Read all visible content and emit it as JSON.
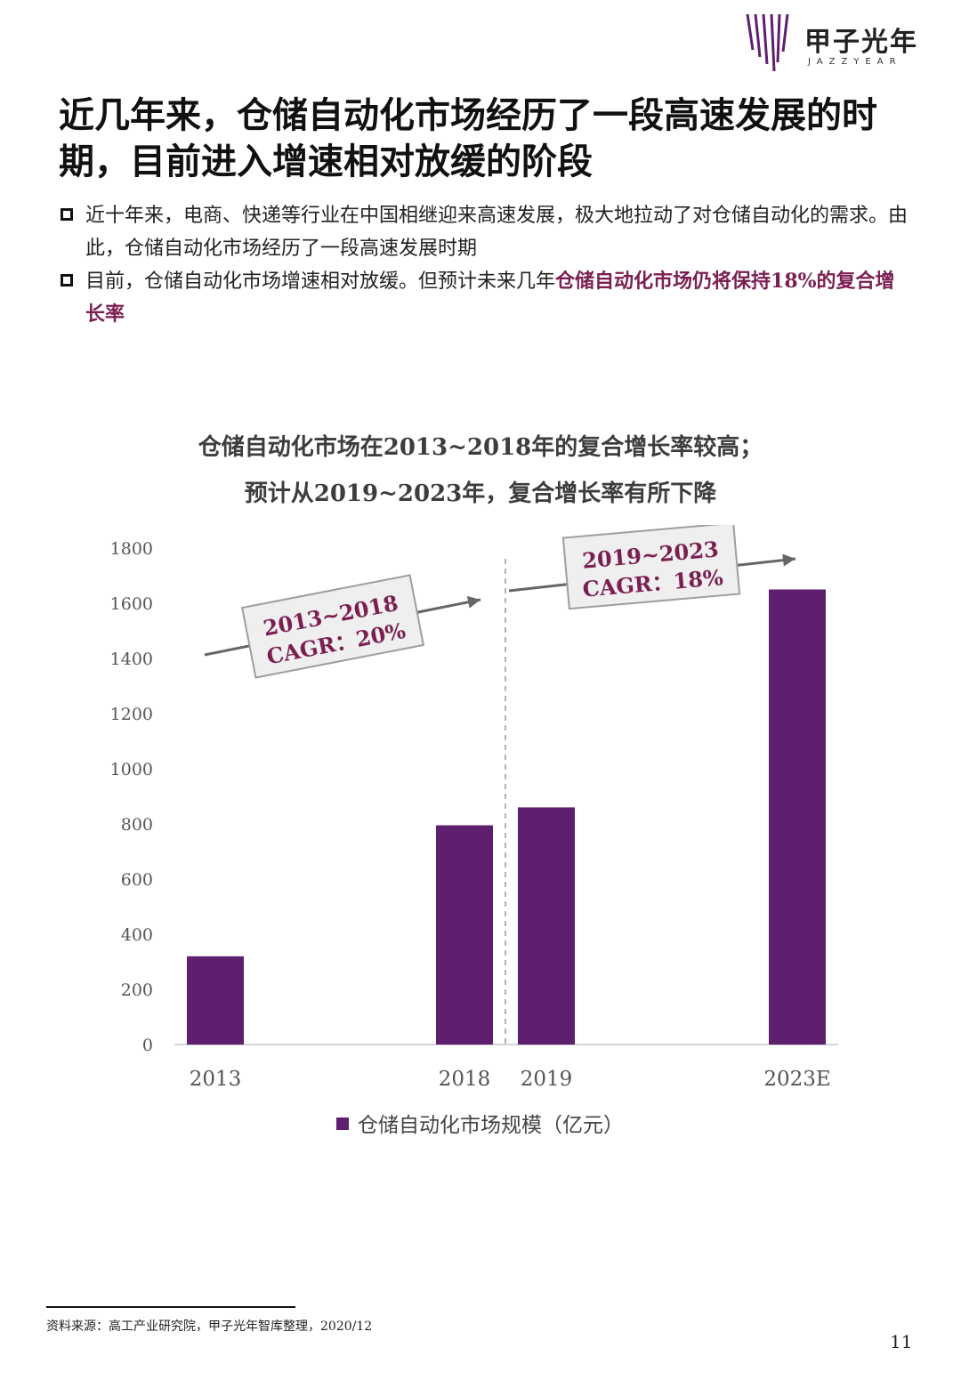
{
  "brand": {
    "name": "甲子光年",
    "name_en": "JAZZYEAR",
    "accent": "#5e1f6f",
    "highlight": "#7b1f52"
  },
  "page": {
    "title": "近几年来，仓储自动化市场经历了一段高速发展的时期，目前进入增速相对放缓的阶段",
    "bullets": [
      {
        "text": "近十年来，电商、快递等行业在中国相继迎来高速发展，极大地拉动了对仓储自动化的需求。由此，仓储自动化市场经历了一段高速发展时期",
        "highlight": ""
      },
      {
        "text": "目前，仓储自动化市场增速相对放缓。但预计未来几年",
        "highlight": "仓储自动化市场仍将保持18%的复合增长率"
      }
    ],
    "source": "资料来源：高工产业研究院，甲子光年智库整理，2020/12",
    "page_number": "11"
  },
  "chart_data": {
    "type": "bar",
    "title": "仓储自动化市场在2013~2018年的复合增长率较高；",
    "subtitle": "预计从2019~2023年，复合增长率有所下降",
    "categories": [
      "2013",
      "2018",
      "2019",
      "2023E"
    ],
    "series": [
      {
        "name": "仓储自动化市场规模（亿元）",
        "values": [
          320,
          795,
          860,
          1650
        ],
        "color": "#5e1f6f"
      }
    ],
    "ylim": [
      0,
      1800
    ],
    "yticks": [
      0,
      200,
      400,
      600,
      800,
      1000,
      1200,
      1400,
      1600,
      1800
    ],
    "legend": "bottom",
    "grid": false,
    "annotations": [
      {
        "line1": "2013~2018",
        "line2": "CAGR：20%",
        "color": "#7b1f52"
      },
      {
        "line1": "2019~2023",
        "line2": "CAGR：18%",
        "color": "#7b1f52"
      }
    ]
  }
}
